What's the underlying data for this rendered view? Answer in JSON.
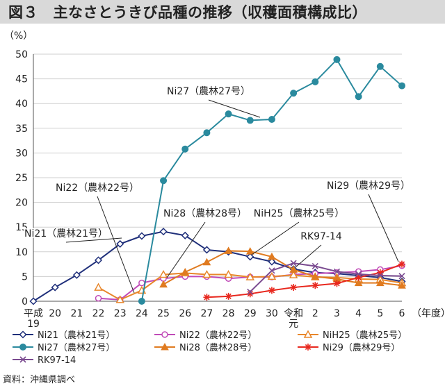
{
  "title": "図３　主なさとうきび品種の推移（収穫面積構成比）",
  "source": "資料：沖縄県調べ",
  "chart_data": {
    "type": "line",
    "ylabel": "（%）",
    "xlabel": "（年度）",
    "ylim": [
      0,
      50
    ],
    "yticks": [
      0,
      5,
      10,
      15,
      20,
      25,
      30,
      35,
      40,
      45,
      50
    ],
    "categories": [
      "平成19",
      "20",
      "21",
      "22",
      "23",
      "24",
      "25",
      "26",
      "27",
      "28",
      "29",
      "30",
      "令和元",
      "2",
      "3",
      "4",
      "5",
      "6"
    ],
    "category_labels": [
      [
        "平成",
        "19"
      ],
      [
        "20"
      ],
      [
        "21"
      ],
      [
        "22"
      ],
      [
        "23"
      ],
      [
        "24"
      ],
      [
        "25"
      ],
      [
        "26"
      ],
      [
        "27"
      ],
      [
        "28"
      ],
      [
        "29"
      ],
      [
        "30"
      ],
      [
        "令和",
        "元"
      ],
      [
        "2"
      ],
      [
        "3"
      ],
      [
        "4"
      ],
      [
        "5"
      ],
      [
        "6"
      ]
    ],
    "grid": "horizontal",
    "legend_position": "bottom",
    "series": [
      {
        "name": "Ni21（農林21号）",
        "color": "#1f2f7a",
        "marker": "diamond",
        "values": [
          0,
          2.8,
          5.3,
          8.3,
          11.6,
          13.2,
          14.1,
          13.3,
          10.4,
          10.0,
          9.0,
          8.0,
          6.5,
          5.8,
          5.6,
          5.2,
          4.8,
          4.0
        ]
      },
      {
        "name": "Ni22（農林22号）",
        "color": "#c04ab8",
        "marker": "circle",
        "values": [
          null,
          null,
          null,
          0.6,
          0.3,
          3.7,
          4.6,
          5.0,
          5.0,
          4.6,
          4.9,
          4.9,
          5.4,
          5.6,
          5.8,
          6.0,
          6.4,
          7.2
        ]
      },
      {
        "name": "NiH25（農林25号）",
        "color": "#e8862a",
        "marker": "triangle-open",
        "values": [
          null,
          null,
          null,
          2.8,
          0.3,
          2.2,
          5.4,
          5.7,
          5.4,
          5.4,
          4.9,
          5.0,
          5.3,
          4.9,
          4.8,
          4.5,
          4.4,
          3.7
        ]
      },
      {
        "name": "Ni27（農林27号）",
        "color": "#2a8a9e",
        "marker": "circle-filled",
        "values": [
          null,
          null,
          null,
          null,
          null,
          0,
          24.4,
          30.8,
          34.1,
          37.9,
          36.6,
          36.8,
          42.1,
          44.4,
          48.9,
          41.4,
          47.5,
          43.6
        ]
      },
      {
        "name": "Ni28（農林28号）",
        "color": "#e07b20",
        "marker": "triangle",
        "values": [
          null,
          null,
          null,
          null,
          null,
          null,
          3.4,
          5.9,
          7.9,
          10.2,
          10.1,
          9.0,
          6.4,
          5.0,
          4.5,
          3.7,
          3.7,
          3.2
        ]
      },
      {
        "name": "Ni29（農林29号）",
        "color": "#e8281e",
        "marker": "star",
        "values": [
          null,
          null,
          null,
          null,
          null,
          null,
          null,
          null,
          0.8,
          1.0,
          1.5,
          2.2,
          2.8,
          3.2,
          3.6,
          4.8,
          5.8,
          7.5
        ]
      },
      {
        "name": "RK97-14",
        "color": "#7a4a90",
        "marker": "x",
        "values": [
          null,
          null,
          null,
          null,
          null,
          null,
          null,
          null,
          null,
          null,
          1.9,
          6.2,
          7.7,
          7.1,
          6.0,
          5.5,
          5.2,
          5.1
        ]
      }
    ],
    "annotations": [
      {
        "text": "Ni27（農林27号）",
        "series": "Ni27（農林27号）",
        "x": "28"
      },
      {
        "text": "Ni22（農林22号）",
        "series": "Ni22（農林22号）",
        "x": "23"
      },
      {
        "text": "Ni28（農林28号）",
        "series": "Ni28（農林28号）",
        "x": "25"
      },
      {
        "text": "NiH25（農林25号）",
        "series": "NiH25（農林25号）",
        "x": "29"
      },
      {
        "text": "Ni21（農林21号）",
        "series": "Ni21（農林21号）",
        "x": "23"
      },
      {
        "text": "RK97-14",
        "series": "RK97-14",
        "x": "令和元"
      },
      {
        "text": "Ni29（農林29号）",
        "series": "Ni29（農林29号）",
        "x": "6"
      }
    ]
  }
}
